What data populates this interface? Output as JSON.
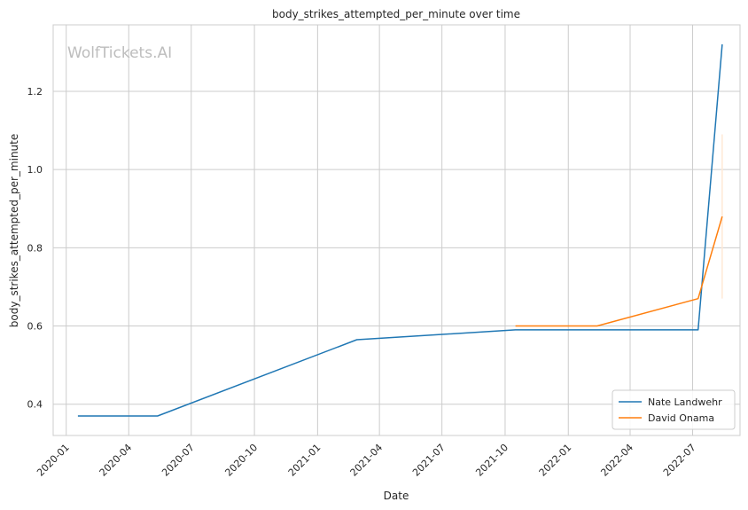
{
  "watermark": "WolfTickets.AI",
  "colors": {
    "grid": "#cccccc",
    "spine": "#cccccc",
    "band": "#ffe9d6"
  },
  "chart_data": {
    "type": "line",
    "title": "body_strikes_attempted_per_minute over time",
    "xlabel": "Date",
    "ylabel": "body_strikes_attempted_per_minute",
    "x_is_date": true,
    "xlim": [
      "2019-12-13",
      "2022-09-08"
    ],
    "ylim": [
      0.32,
      1.37
    ],
    "x_ticks": [
      "2020-01",
      "2020-04",
      "2020-07",
      "2020-10",
      "2021-01",
      "2021-04",
      "2021-07",
      "2021-10",
      "2022-01",
      "2022-04",
      "2022-07"
    ],
    "y_ticks": [
      0.4,
      0.6,
      0.8,
      1.0,
      1.2
    ],
    "y_tick_labels": [
      "0.4",
      "0.6",
      "0.8",
      "1.0",
      "1.2"
    ],
    "grid": true,
    "legend_position": "bottom-right",
    "series": [
      {
        "name": "Nate Landwehr",
        "color": "#1f77b4",
        "x": [
          "2020-01-18",
          "2020-05-13",
          "2021-02-27",
          "2021-10-16",
          "2022-07-09",
          "2022-08-13"
        ],
        "y": [
          0.37,
          0.37,
          0.565,
          0.59,
          0.59,
          1.32
        ]
      },
      {
        "name": "David Onama",
        "color": "#ff7f0e",
        "x": [
          "2021-10-16",
          "2022-02-12",
          "2022-07-09",
          "2022-08-13"
        ],
        "y": [
          0.6,
          0.6,
          0.67,
          0.88
        ],
        "band": {
          "x": "2022-08-13",
          "low": 0.67,
          "high": 1.09
        }
      }
    ]
  }
}
